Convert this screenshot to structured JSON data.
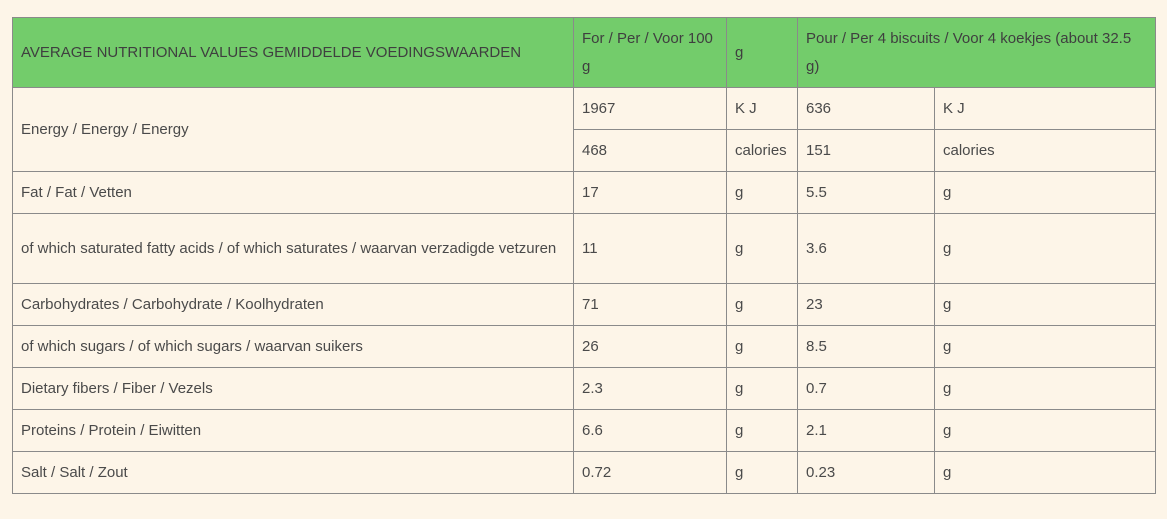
{
  "table": {
    "header": {
      "col1": "AVERAGE NUTRITIONAL VALUES GEMIDDELDE VOEDINGSWAARDEN",
      "col2": "For / Per / Voor 100 g",
      "col3": "g",
      "col4": "Pour / Per 4 biscuits / Voor 4 koekjes (about 32.5 g)"
    },
    "energy": {
      "label": "Energy / Energy / Energy",
      "kj": {
        "per100": "1967",
        "unit100": "K J",
        "per4": "636",
        "unit4": "K J"
      },
      "cal": {
        "per100": "468",
        "unit100": "calories",
        "per4": "151",
        "unit4": "calories"
      }
    },
    "rows": [
      {
        "label": "Fat / Fat / Vetten",
        "per100": "17",
        "unit100": "g",
        "per4": "5.5",
        "unit4": "g"
      },
      {
        "label": "of which saturated fatty acids / of which saturates / waarvan verzadigde vetzuren",
        "per100": "11",
        "unit100": "g",
        "per4": "3.6",
        "unit4": "g"
      },
      {
        "label": "Carbohydrates / Carbohydrate / Koolhydraten",
        "per100": "71",
        "unit100": "g",
        "per4": "23",
        "unit4": "g"
      },
      {
        "label": "of which sugars / of which sugars / waarvan suikers",
        "per100": "26",
        "unit100": "g",
        "per4": "8.5",
        "unit4": "g"
      },
      {
        "label": "Dietary fibers / Fiber / Vezels",
        "per100": "2.3",
        "unit100": "g",
        "per4": "0.7",
        "unit4": "g"
      },
      {
        "label": "Proteins / Protein / Eiwitten",
        "per100": "6.6",
        "unit100": "g",
        "per4": "2.1",
        "unit4": "g"
      },
      {
        "label": "Salt / Salt / Zout",
        "per100": "0.72",
        "unit100": "g",
        "per4": "0.23",
        "unit4": "g"
      }
    ]
  }
}
